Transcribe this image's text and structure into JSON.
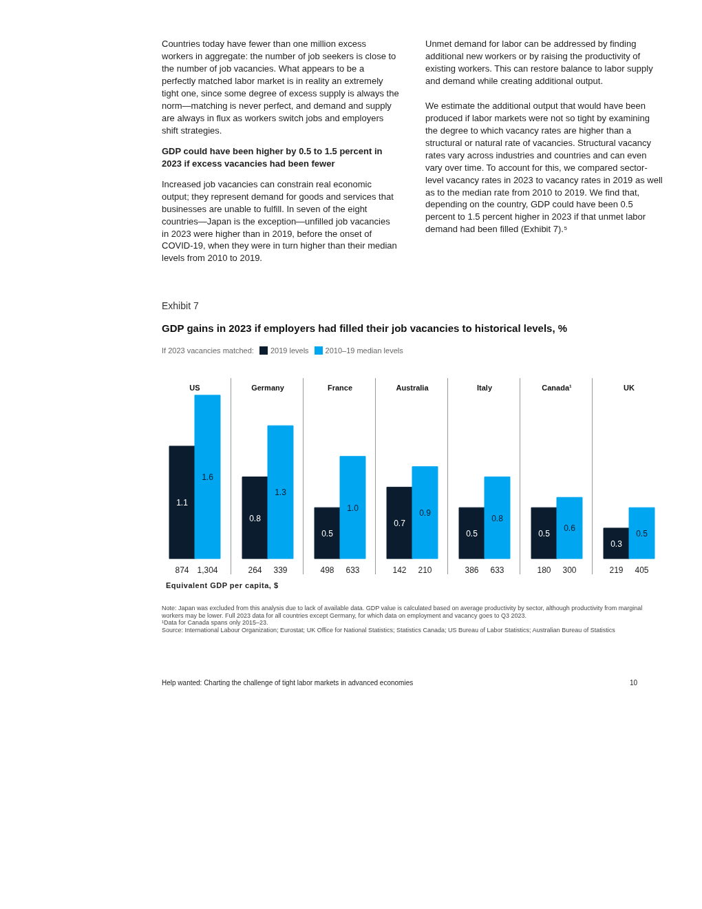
{
  "chart_data": [
    {
      "type": "bar",
      "title": "US",
      "categories": [
        "874",
        "1,304"
      ],
      "series": [
        {
          "name": "2019 levels",
          "color": "#0b1c2e",
          "values": [
            1.1,
            null
          ]
        },
        {
          "name": "2010–19 median levels",
          "color": "#00a6f0",
          "values": [
            null,
            1.6
          ]
        }
      ],
      "data_labels": true,
      "legend": "top",
      "legend_title": "If 2023 vacancies matched:",
      "annotations": [
        "Countries today have fewer than one million excess workers in aggregate: the number of job seekers is close to the number of job vacancies. What appears to be a perfectly matched labor market is in reality an extremely tight one, since some degree of excess supply is always the norm—matching is never perfect, and demand and supply are always in flux as workers switch jobs and employers shift strategies.",
        "GDP could have been higher by 0.5 to 1.5 percent in 2023 if excess vacancies had been fewer",
        "Increased job vacancies can constrain real economic output; they represent demand for goods and services that businesses are unable to fulfill. In seven of the eight countries—Japan is the exception—unfilled job vacancies in 2023 were higher than in 2019, before the onset of COVID-19, when they were in turn higher than their median levels from 2010 to 2019.",
        "Unmet demand for labor can be addressed by finding additional new workers or by raising the productivity of existing workers. This can restore balance to labor supply and demand while creating additional output.",
        "We estimate the additional output that would have been produced if labor markets were not so tight by examining the degree to which vacancy rates are higher than a structural or natural rate of vacancies. Structural vacancy rates vary across industries and countries and can even vary over time. To account for this, we compared sector-level vacancy rates in 2023 to vacancy rates in 2019 as well as to the median rate from 2010 to 2019. We find that, depending on the country, GDP could have been 0.5 percent to 1.5 percent higher in 2023 if that unmet labor demand had been filled (Exhibit 7).⁵",
        "Exhibit 7",
        "GDP gains in 2023 if employers had filled their job vacancies to historical levels, %",
        "Equivalent GDP per capita, $",
        "Note: Japan was excluded from this analysis due to lack of available data. GDP value is calculated based on average productivity by sector, although productivity from marginal workers may be lower. Full 2023 data for all countries except Germany, for which data on employment and vacancy goes to Q3 2023.",
        "¹Data for Canada spans only 2015–23.",
        "Source: International Labour Organization; Eurostat; UK Office for National Statistics; Statistics Canada; US Bureau of Labor Statistics; Australian Bureau of Statistics",
        "Help wanted: Charting the challenge of tight labor markets in advanced economies",
        "10"
      ]
    },
    {
      "type": "bar",
      "title": "Germany",
      "categories": [
        "264",
        "339"
      ],
      "series": [
        {
          "color": "#0b1c2e",
          "values": [
            0.8,
            null
          ]
        },
        {
          "color": "#00a6f0",
          "values": [
            null,
            1.3
          ]
        }
      ],
      "data_labels": true
    },
    {
      "type": "bar",
      "title": "France",
      "categories": [
        "498",
        "633"
      ],
      "series": [
        {
          "color": "#0b1c2e",
          "values": [
            0.5,
            null
          ]
        },
        {
          "color": "#00a6f0",
          "values": [
            null,
            1.0
          ],
          "value_labels": [
            null,
            "1.0"
          ]
        }
      ],
      "data_labels": true
    },
    {
      "type": "bar",
      "title": "Australia",
      "categories": [
        "142",
        "210"
      ],
      "series": [
        {
          "color": "#0b1c2e",
          "values": [
            0.7,
            null
          ]
        },
        {
          "color": "#00a6f0",
          "values": [
            null,
            0.9
          ]
        }
      ],
      "data_labels": true
    },
    {
      "type": "bar",
      "title": "Italy",
      "categories": [
        "386",
        "633"
      ],
      "series": [
        {
          "color": "#0b1c2e",
          "values": [
            0.5,
            null
          ]
        },
        {
          "color": "#00a6f0",
          "values": [
            null,
            0.8
          ]
        }
      ],
      "data_labels": true
    },
    {
      "type": "bar",
      "title": "Canada¹",
      "categories": [
        "180",
        "300"
      ],
      "series": [
        {
          "color": "#0b1c2e",
          "values": [
            0.5,
            null
          ]
        },
        {
          "color": "#00a6f0",
          "values": [
            null,
            0.6
          ]
        }
      ],
      "data_labels": true
    },
    {
      "type": "bar",
      "title": "UK",
      "categories": [
        "219",
        "405"
      ],
      "series": [
        {
          "color": "#0b1c2e",
          "values": [
            0.3,
            null
          ]
        },
        {
          "color": "#00a6f0",
          "values": [
            null,
            0.5
          ]
        }
      ],
      "data_labels": true
    }
  ]
}
